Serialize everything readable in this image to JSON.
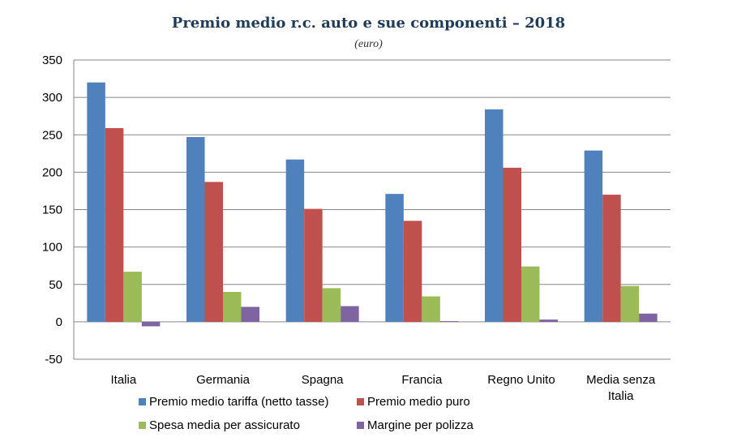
{
  "title": "Premio medio r.c. auto e sue componenti – 2018",
  "subtitle": "(euro)",
  "chart_data": {
    "type": "bar",
    "title": "Premio medio r.c. auto e sue componenti – 2018",
    "subtitle": "(euro)",
    "categories": [
      "Italia",
      "Germania",
      "Spagna",
      "Francia",
      "Regno Unito",
      "Media senza Italia"
    ],
    "category_lines": [
      [
        "Italia"
      ],
      [
        "Germania"
      ],
      [
        "Spagna"
      ],
      [
        "Francia"
      ],
      [
        "Regno Unito"
      ],
      [
        "Media senza",
        "Italia"
      ]
    ],
    "series": [
      {
        "name": "Premio medio tariffa (netto tasse)",
        "color": "#4f81bd",
        "values": [
          320,
          247,
          217,
          171,
          284,
          229
        ]
      },
      {
        "name": "Premio medio puro",
        "color": "#c0504d",
        "values": [
          259,
          187,
          151,
          135,
          206,
          170
        ]
      },
      {
        "name": "Spesa media per assicurato",
        "color": "#9bbb59",
        "values": [
          67,
          40,
          45,
          34,
          74,
          48
        ]
      },
      {
        "name": "Margine per polizza",
        "color": "#8064a2",
        "values": [
          -6,
          20,
          21,
          1,
          3,
          11
        ]
      }
    ],
    "ylim": [
      -50,
      350
    ],
    "yticks": [
      -50,
      0,
      50,
      100,
      150,
      200,
      250,
      300,
      350
    ],
    "grid": true,
    "legend_position": "bottom"
  }
}
